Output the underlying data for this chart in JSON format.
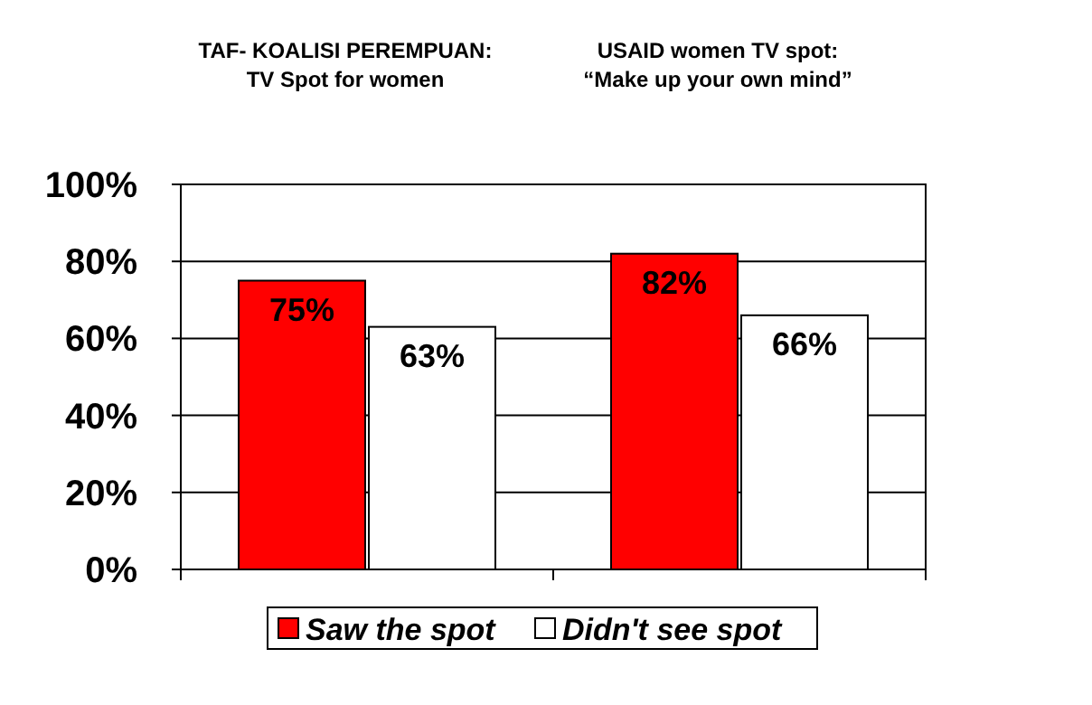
{
  "chart_data": {
    "type": "bar",
    "categories": [
      "TAF- KOALISI PEREMPUAN:\nTV Spot for women",
      "USAID women TV spot:\n“Make up your own mind”"
    ],
    "series": [
      {
        "name": "Saw the spot",
        "color": "#ff0000",
        "values": [
          75,
          82
        ]
      },
      {
        "name": "Didn't see spot",
        "color": "#ffffff",
        "values": [
          63,
          66
        ]
      }
    ],
    "ylim": [
      0,
      100
    ],
    "yticks": [
      {
        "value": 0,
        "label": "0%"
      },
      {
        "value": 20,
        "label": "20%"
      },
      {
        "value": 40,
        "label": "40%"
      },
      {
        "value": 60,
        "label": "60%"
      },
      {
        "value": 80,
        "label": "80%"
      },
      {
        "value": 100,
        "label": "100%"
      }
    ],
    "value_labels": [
      [
        "75%",
        "82%"
      ],
      [
        "63%",
        "66%"
      ]
    ],
    "grid": "y",
    "legend": "bottom"
  }
}
